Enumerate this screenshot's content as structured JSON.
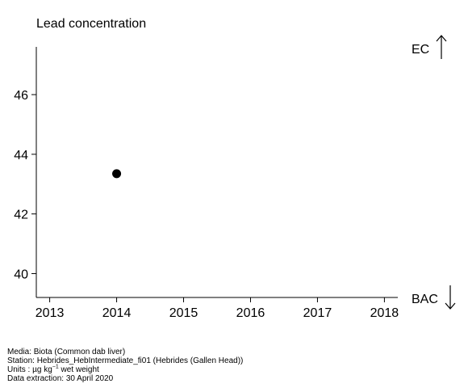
{
  "chart_data": {
    "type": "scatter",
    "title": "Lead concentration",
    "xlim": [
      2012.8,
      2018.2
    ],
    "ylim": [
      39.2,
      47.6
    ],
    "x_ticks": [
      2013,
      2014,
      2015,
      2016,
      2017,
      2018
    ],
    "y_ticks": [
      40,
      42,
      44,
      46
    ],
    "points": [
      {
        "x": 2014,
        "y": 43.35
      }
    ],
    "reference_labels": {
      "top": "EC",
      "bottom": "BAC"
    }
  },
  "footer": {
    "media": "Media: Biota (Common dab liver)",
    "station": "Station: Hebrides_HebIntermediate_fi01 (Hebrides (Gallen Head))",
    "units_prefix": "Units : µg kg",
    "units_sup": "−1",
    "units_suffix": " wet weight",
    "extraction": "Data extraction: 30 April 2020"
  }
}
